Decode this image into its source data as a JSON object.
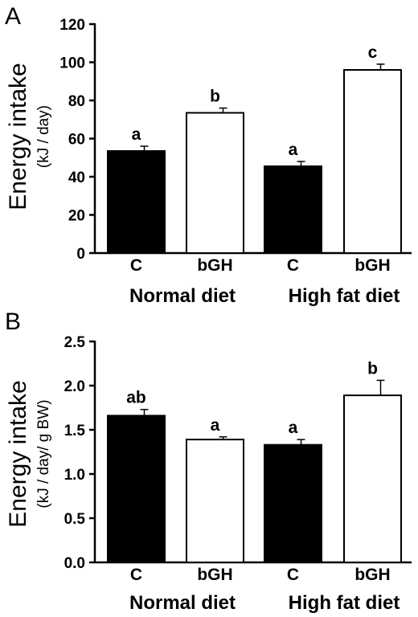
{
  "chart_data": [
    {
      "type": "bar",
      "panel_label": "A",
      "ylabel": "Energy intake",
      "ylabel_unit": "(kJ / day)",
      "ylim": [
        0,
        120
      ],
      "yticks": [
        "0",
        "20",
        "40",
        "60",
        "80",
        "100",
        "120"
      ],
      "categories": [
        "C",
        "bGH",
        "C",
        "bGH"
      ],
      "groups": [
        "Normal diet",
        "High fat diet"
      ],
      "values": [
        53.5,
        73.5,
        45.5,
        96
      ],
      "errors": [
        2.5,
        2.5,
        2.5,
        3
      ],
      "significance": [
        "a",
        "b",
        "a",
        "c"
      ],
      "bar_fills": [
        "#000000",
        "#ffffff",
        "#000000",
        "#ffffff"
      ]
    },
    {
      "type": "bar",
      "panel_label": "B",
      "ylabel": "Energy intake",
      "ylabel_unit": "(kJ / day/ g BW)",
      "ylim": [
        0,
        2.5
      ],
      "yticks": [
        "0.0",
        "0.5",
        "1.0",
        "1.5",
        "2.0",
        "2.5"
      ],
      "categories": [
        "C",
        "bGH",
        "C",
        "bGH"
      ],
      "groups": [
        "Normal diet",
        "High fat diet"
      ],
      "values": [
        1.66,
        1.39,
        1.33,
        1.89
      ],
      "errors": [
        0.07,
        0.03,
        0.06,
        0.17
      ],
      "significance": [
        "ab",
        "a",
        "a",
        "b"
      ],
      "bar_fills": [
        "#000000",
        "#ffffff",
        "#000000",
        "#ffffff"
      ]
    }
  ]
}
